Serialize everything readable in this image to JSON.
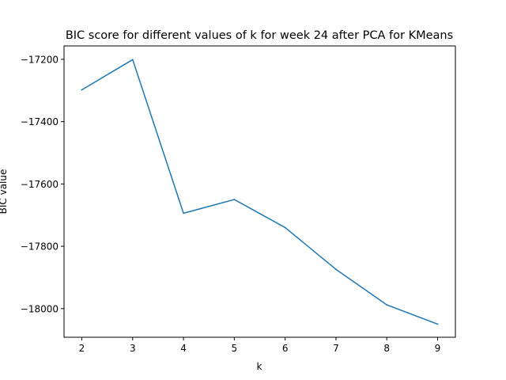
{
  "chart_data": {
    "type": "line",
    "title": "BIC score for different values of k for week 24 after PCA for KMeans",
    "xlabel": "k",
    "ylabel": "BIC value",
    "x": [
      2,
      3,
      4,
      5,
      6,
      7,
      8,
      9
    ],
    "series": [
      {
        "values": [
          -17298,
          -17201,
          -17694,
          -17650,
          -17740,
          -17874,
          -17988,
          -18050
        ],
        "color": "#1f77b4"
      }
    ],
    "xlim": [
      1.65,
      9.35
    ],
    "ylim": [
      -18092,
      -17157
    ],
    "xticks": [
      2,
      3,
      4,
      5,
      6,
      7,
      8,
      9
    ],
    "xtick_labels": [
      "2",
      "3",
      "4",
      "5",
      "6",
      "7",
      "8",
      "9"
    ],
    "yticks": [
      -17200,
      -17400,
      -17600,
      -17800,
      -18000
    ],
    "ytick_labels": [
      "−17200",
      "−17400",
      "−17600",
      "−17800",
      "−18000"
    ],
    "grid": false,
    "legend": "none"
  }
}
